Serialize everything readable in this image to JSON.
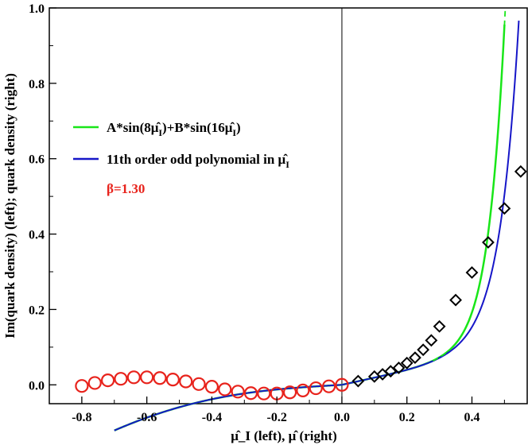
{
  "chart_data": {
    "type": "scatter",
    "title": "",
    "xlabel": "μ̂_I (left), μ̂ (right)",
    "ylabel": "Im(quark density) (left); quark density (right)",
    "xlim": [
      -0.9,
      0.57
    ],
    "ylim": [
      -0.05,
      1.0
    ],
    "x_ticks": [
      -0.8,
      -0.6,
      -0.4,
      -0.2,
      0.0,
      0.2,
      0.4
    ],
    "x_tick_labels": [
      "-0.8",
      "-0.6",
      "-0.4",
      "-0.2",
      "0.0",
      "0.2",
      "0.4"
    ],
    "y_ticks": [
      0.0,
      0.2,
      0.4,
      0.6,
      0.8,
      1.0
    ],
    "y_tick_labels": [
      "0.0",
      "0.2",
      "0.4",
      "0.6",
      "0.8",
      "1.0"
    ],
    "vertical_line_x": 0.0,
    "annotation": {
      "text": "β=1.30",
      "color": "#e8231c"
    },
    "series": [
      {
        "name": "A*sin(8μ̂_I)+B*sin(16μ̂_I)",
        "kind": "line",
        "color": "#19e619",
        "in_legend": true,
        "legend_main": "A*sin(8",
        "legend_hat": "μ̂",
        "legend_sub": "I",
        "legend_mid": ")+B*sin(16",
        "legend_end": ")"
      },
      {
        "name": "11th order odd polynomial in μ̂_I",
        "kind": "line",
        "color": "#1616c8",
        "in_legend": true,
        "legend_main": "11th order odd polynomial in ",
        "legend_hat": "μ̂",
        "legend_sub": "I"
      },
      {
        "name": "Im(quark density) data",
        "kind": "circles",
        "color": "#e8231c",
        "in_legend": false,
        "x": [
          -0.8,
          -0.76,
          -0.72,
          -0.68,
          -0.64,
          -0.6,
          -0.56,
          -0.52,
          -0.48,
          -0.44,
          -0.4,
          -0.36,
          -0.32,
          -0.28,
          -0.24,
          -0.2,
          -0.16,
          -0.12,
          -0.08,
          -0.04,
          0.0
        ],
        "y": [
          -0.003,
          0.005,
          0.012,
          0.016,
          0.02,
          0.02,
          0.018,
          0.014,
          0.009,
          0.002,
          -0.005,
          -0.012,
          -0.018,
          -0.022,
          -0.023,
          -0.023,
          -0.02,
          -0.015,
          -0.009,
          -0.004,
          0.0
        ]
      },
      {
        "name": "quark density data",
        "kind": "diamonds",
        "color": "#000000",
        "in_legend": false,
        "x": [
          0.05,
          0.1,
          0.125,
          0.15,
          0.175,
          0.2,
          0.225,
          0.25,
          0.275,
          0.3,
          0.35,
          0.4,
          0.45,
          0.5,
          0.55
        ],
        "y": [
          0.01,
          0.022,
          0.028,
          0.036,
          0.045,
          0.058,
          0.072,
          0.093,
          0.118,
          0.155,
          0.225,
          0.298,
          0.378,
          0.468,
          0.566
        ]
      }
    ]
  }
}
